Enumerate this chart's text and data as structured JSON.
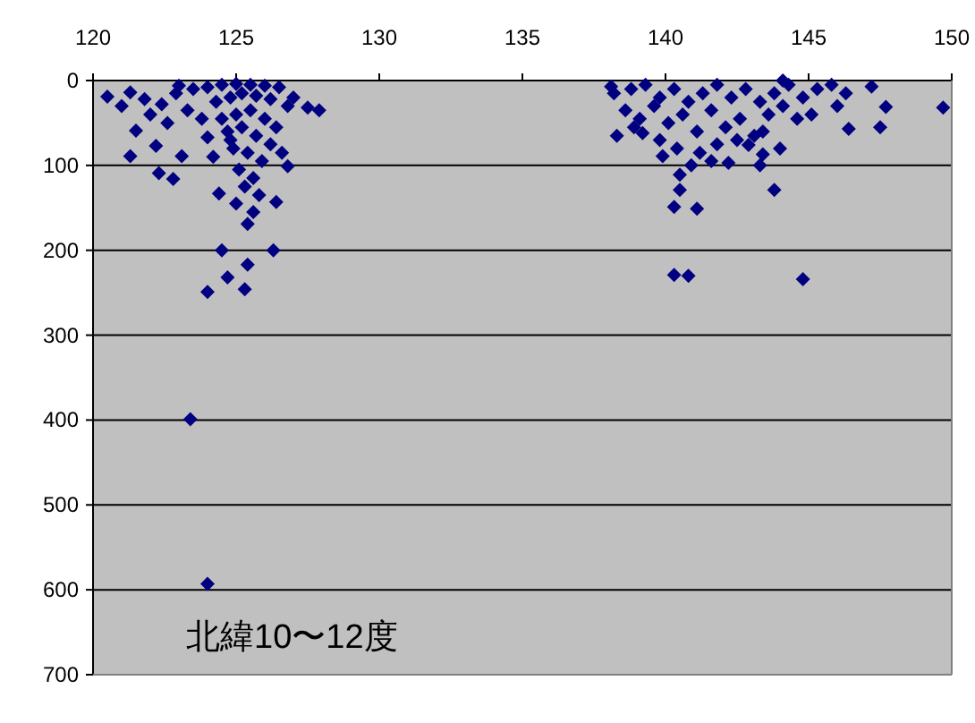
{
  "chart_data": {
    "type": "scatter",
    "x": [
      120.5,
      121.3,
      121.5,
      121.3,
      122.2,
      123.1,
      122.3,
      122.8,
      123.0,
      124.0,
      127.9,
      126.8,
      124.4,
      125.4,
      126.4,
      124.5,
      126.3,
      124.7,
      124.0,
      125.3,
      125.4,
      123.4,
      124.0,
      121.0,
      121.8,
      122.4,
      122.9,
      123.5,
      124.0,
      124.5,
      125.0,
      125.5,
      126.0,
      126.5,
      127.0,
      127.5,
      122.0,
      122.6,
      123.3,
      123.8,
      124.3,
      124.8,
      125.2,
      125.7,
      126.2,
      126.8,
      124.5,
      125.0,
      125.5,
      126.0,
      126.4,
      124.7,
      125.2,
      125.7,
      126.2,
      124.9,
      125.4,
      125.9,
      125.1,
      125.6,
      125.3,
      125.8,
      125.0,
      125.6,
      124.8,
      126.6,
      124.2,
      138.1,
      138.3,
      139.2,
      139.9,
      140.5,
      140.5,
      140.3,
      141.1,
      142.2,
      142.9,
      143.4,
      143.3,
      143.8,
      144.1,
      146.0,
      146.4,
      147.2,
      147.7,
      147.5,
      149.7,
      140.3,
      140.8,
      144.8,
      138.2,
      138.8,
      139.3,
      139.8,
      140.3,
      140.8,
      141.3,
      141.8,
      142.3,
      142.8,
      143.3,
      143.8,
      144.3,
      144.8,
      145.3,
      145.8,
      146.3,
      138.6,
      139.1,
      139.6,
      140.1,
      140.6,
      141.1,
      141.6,
      142.1,
      142.6,
      143.1,
      143.6,
      144.1,
      144.6,
      145.1,
      138.9,
      139.8,
      140.4,
      141.2,
      141.8,
      142.5,
      143.4,
      144.0,
      140.9,
      141.6
    ],
    "values": [
      19,
      14,
      59,
      89,
      77,
      89,
      109,
      116,
      6,
      67,
      35,
      101,
      133,
      169,
      143,
      200,
      200,
      232,
      249,
      246,
      217,
      399,
      593,
      30,
      22,
      28,
      15,
      10,
      8,
      5,
      4,
      5,
      6,
      8,
      20,
      32,
      40,
      50,
      35,
      45,
      25,
      20,
      15,
      18,
      22,
      30,
      45,
      40,
      35,
      45,
      55,
      60,
      55,
      65,
      75,
      80,
      85,
      95,
      105,
      115,
      125,
      135,
      145,
      155,
      70,
      85,
      90,
      7,
      65,
      62,
      89,
      111,
      129,
      149,
      151,
      97,
      76,
      87,
      100,
      129,
      0,
      30,
      57,
      7,
      31,
      55,
      32,
      229,
      230,
      234,
      15,
      10,
      5,
      20,
      10,
      25,
      15,
      5,
      20,
      10,
      25,
      15,
      5,
      20,
      10,
      5,
      15,
      35,
      45,
      30,
      50,
      40,
      60,
      35,
      55,
      45,
      65,
      40,
      30,
      45,
      40,
      55,
      70,
      80,
      85,
      75,
      70,
      60,
      80,
      100,
      95
    ],
    "color": "#000080",
    "marker": "diamond",
    "xlim": [
      120,
      150
    ],
    "xticks": [
      120,
      125,
      130,
      135,
      140,
      145,
      150
    ],
    "ylim": [
      700,
      0
    ],
    "yticks": [
      0,
      100,
      200,
      300,
      400,
      500,
      600,
      700
    ],
    "grid": "y",
    "annotations": [
      "北緯10〜12度"
    ]
  }
}
